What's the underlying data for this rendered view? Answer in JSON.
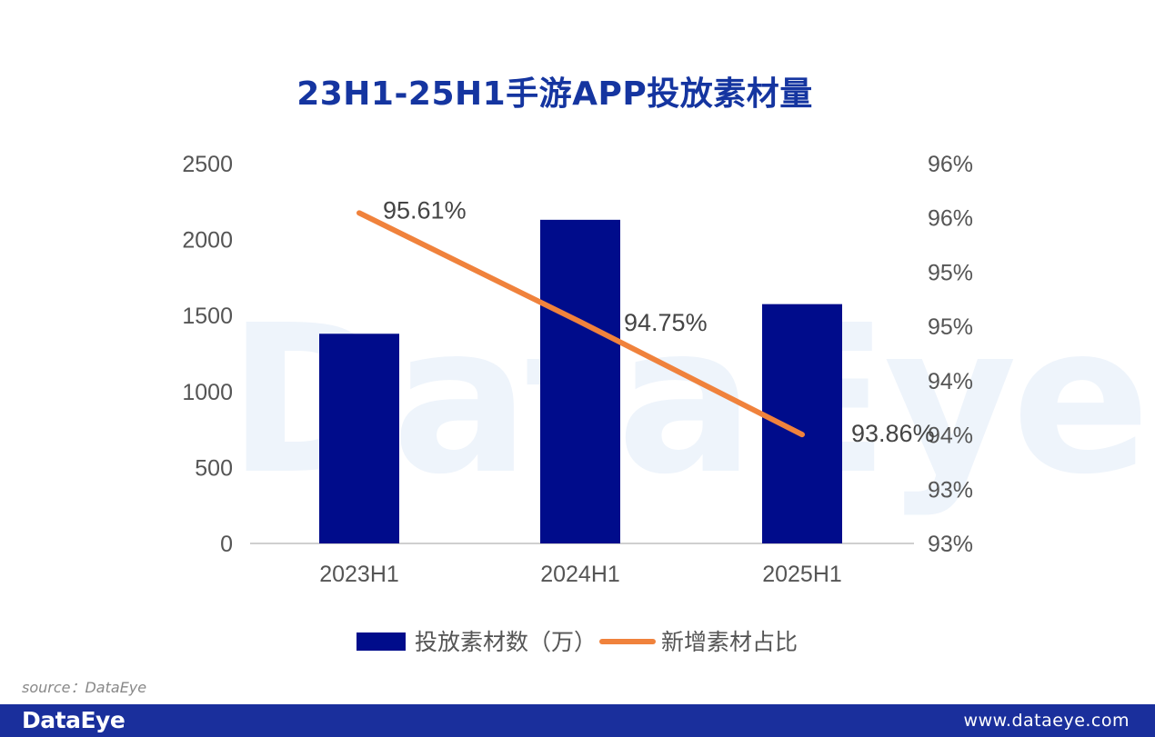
{
  "title": "23H1-25H1手游APP投放素材量",
  "watermark": "DataEye",
  "source": "source：DataEye",
  "footer": {
    "logo": "DataEye",
    "url": "www.dataeye.com"
  },
  "colors": {
    "bar": "#000c8b",
    "line": "#f0823c",
    "title": "#1535a0",
    "footer": "#1a2f9c"
  },
  "chart_data": {
    "type": "bar",
    "categories": [
      "2023H1",
      "2024H1",
      "2025H1"
    ],
    "series": [
      {
        "name": "投放素材数（万）",
        "type": "bar",
        "axis": "left",
        "values": [
          1380,
          2130,
          1575
        ]
      },
      {
        "name": "新增素材占比",
        "type": "line",
        "axis": "right",
        "values": [
          95.61,
          94.75,
          93.86
        ],
        "labels": [
          "95.61%",
          "94.75%",
          "93.86%"
        ]
      }
    ],
    "y_left": {
      "range": [
        0,
        2500
      ],
      "ticks": [
        0,
        500,
        1000,
        1500,
        2000,
        2500
      ]
    },
    "y_right": {
      "range": [
        93,
        96
      ],
      "tick_labels": [
        "93%",
        "93%",
        "94%",
        "94%",
        "95%",
        "95%",
        "96%",
        "96%"
      ]
    },
    "legend": "bottom",
    "grid": false
  }
}
